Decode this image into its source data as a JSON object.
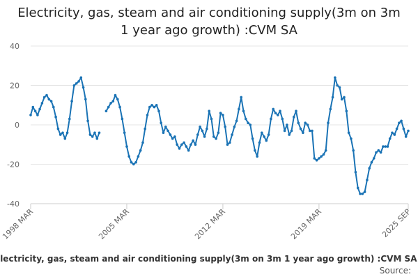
{
  "chart_data": {
    "type": "line",
    "title": "Electricity, gas, steam and air conditioning supply(3m on 3m\n1 year ago growth) :CVM SA",
    "source_label": "Source:",
    "series": [
      {
        "name": "Electricity, gas, steam and air conditioning supply(3m on 3m 1 year ago growth) :CVM SA",
        "color": "#1a73b5",
        "segments": [
          [
            [
              "1998-03",
              5
            ],
            [
              "1998-05",
              9
            ],
            [
              "1998-07",
              7
            ],
            [
              "1998-09",
              5
            ],
            [
              "1998-11",
              8
            ],
            [
              "1999-01",
              11
            ],
            [
              "1999-03",
              14
            ],
            [
              "1999-05",
              15
            ],
            [
              "1999-07",
              13
            ],
            [
              "1999-09",
              12
            ],
            [
              "1999-11",
              9
            ],
            [
              "2000-01",
              4
            ],
            [
              "2000-03",
              -2
            ],
            [
              "2000-05",
              -5
            ],
            [
              "2000-07",
              -4
            ],
            [
              "2000-09",
              -7
            ],
            [
              "2000-11",
              -4
            ],
            [
              "2001-01",
              3
            ],
            [
              "2001-03",
              12
            ],
            [
              "2001-05",
              20
            ],
            [
              "2001-07",
              21
            ],
            [
              "2001-09",
              22
            ],
            [
              "2001-11",
              24
            ],
            [
              "2002-01",
              19
            ],
            [
              "2002-03",
              13
            ],
            [
              "2002-05",
              2
            ],
            [
              "2002-07",
              -5
            ],
            [
              "2002-09",
              -6
            ],
            [
              "2002-11",
              -4
            ],
            [
              "2003-01",
              -7
            ],
            [
              "2003-03",
              -4
            ]
          ],
          [
            [
              "2003-09",
              7
            ],
            [
              "2003-11",
              9
            ],
            [
              "2004-01",
              11
            ],
            [
              "2004-03",
              12
            ],
            [
              "2004-05",
              15
            ],
            [
              "2004-07",
              13
            ],
            [
              "2004-09",
              9
            ],
            [
              "2004-11",
              3
            ],
            [
              "2005-01",
              -4
            ],
            [
              "2005-03",
              -11
            ],
            [
              "2005-05",
              -16
            ],
            [
              "2005-07",
              -19
            ],
            [
              "2005-09",
              -20
            ],
            [
              "2005-11",
              -19
            ],
            [
              "2006-01",
              -16
            ],
            [
              "2006-03",
              -13
            ],
            [
              "2006-05",
              -9
            ],
            [
              "2006-07",
              -2
            ],
            [
              "2006-09",
              5
            ],
            [
              "2006-11",
              9
            ],
            [
              "2007-01",
              10
            ],
            [
              "2007-03",
              9
            ],
            [
              "2007-05",
              10
            ],
            [
              "2007-07",
              7
            ],
            [
              "2007-09",
              1
            ],
            [
              "2007-11",
              -4
            ],
            [
              "2008-01",
              -1
            ],
            [
              "2008-03",
              -3
            ],
            [
              "2008-05",
              -5
            ],
            [
              "2008-07",
              -7
            ],
            [
              "2008-09",
              -6
            ],
            [
              "2008-11",
              -10
            ],
            [
              "2009-01",
              -12
            ],
            [
              "2009-03",
              -10
            ],
            [
              "2009-05",
              -9
            ],
            [
              "2009-07",
              -11
            ],
            [
              "2009-09",
              -13
            ],
            [
              "2009-11",
              -10
            ],
            [
              "2010-01",
              -8
            ],
            [
              "2010-03",
              -10
            ],
            [
              "2010-05",
              -5
            ],
            [
              "2010-07",
              -1
            ],
            [
              "2010-09",
              -3
            ],
            [
              "2010-11",
              -6
            ],
            [
              "2011-01",
              -2
            ],
            [
              "2011-03",
              7
            ],
            [
              "2011-05",
              3
            ],
            [
              "2011-07",
              -6
            ],
            [
              "2011-09",
              -7
            ],
            [
              "2011-11",
              -4
            ],
            [
              "2012-01",
              6
            ],
            [
              "2012-03",
              5
            ],
            [
              "2012-05",
              -1
            ],
            [
              "2012-07",
              -10
            ],
            [
              "2012-09",
              -9
            ],
            [
              "2012-11",
              -5
            ],
            [
              "2013-01",
              -1
            ],
            [
              "2013-03",
              2
            ],
            [
              "2013-05",
              8
            ],
            [
              "2013-07",
              14
            ],
            [
              "2013-09",
              7
            ],
            [
              "2013-11",
              3
            ],
            [
              "2014-01",
              1
            ],
            [
              "2014-03",
              0
            ],
            [
              "2014-05",
              -7
            ],
            [
              "2014-07",
              -13
            ],
            [
              "2014-09",
              -16
            ],
            [
              "2014-11",
              -9
            ],
            [
              "2015-01",
              -4
            ],
            [
              "2015-03",
              -6
            ],
            [
              "2015-05",
              -8
            ],
            [
              "2015-07",
              -5
            ],
            [
              "2015-09",
              3
            ],
            [
              "2015-11",
              8
            ],
            [
              "2016-01",
              6
            ],
            [
              "2016-03",
              5
            ],
            [
              "2016-05",
              7
            ],
            [
              "2016-07",
              3
            ],
            [
              "2016-09",
              -3
            ],
            [
              "2016-11",
              0
            ],
            [
              "2017-01",
              -5
            ],
            [
              "2017-03",
              -3
            ],
            [
              "2017-05",
              4
            ],
            [
              "2017-07",
              7
            ],
            [
              "2017-09",
              1
            ],
            [
              "2017-11",
              -2
            ],
            [
              "2018-01",
              -4
            ],
            [
              "2018-03",
              1
            ],
            [
              "2018-05",
              0
            ],
            [
              "2018-07",
              -3
            ],
            [
              "2018-09",
              -3
            ],
            [
              "2018-11",
              -17
            ],
            [
              "2019-01",
              -18
            ],
            [
              "2019-03",
              -17
            ],
            [
              "2019-05",
              -16
            ],
            [
              "2019-07",
              -15
            ],
            [
              "2019-09",
              -13
            ],
            [
              "2019-11",
              1
            ],
            [
              "2020-01",
              8
            ],
            [
              "2020-03",
              14
            ],
            [
              "2020-05",
              24
            ],
            [
              "2020-07",
              20
            ],
            [
              "2020-09",
              19
            ],
            [
              "2020-11",
              13
            ],
            [
              "2021-01",
              14
            ],
            [
              "2021-03",
              7
            ],
            [
              "2021-05",
              -4
            ],
            [
              "2021-07",
              -7
            ],
            [
              "2021-09",
              -13
            ],
            [
              "2021-11",
              -24
            ],
            [
              "2022-01",
              -32
            ],
            [
              "2022-03",
              -35
            ],
            [
              "2022-05",
              -35
            ],
            [
              "2022-07",
              -34
            ],
            [
              "2022-09",
              -28
            ],
            [
              "2022-11",
              -22
            ],
            [
              "2023-01",
              -19
            ],
            [
              "2023-03",
              -17
            ],
            [
              "2023-05",
              -14
            ],
            [
              "2023-07",
              -13
            ],
            [
              "2023-09",
              -14
            ],
            [
              "2023-11",
              -11
            ],
            [
              "2024-01",
              -11
            ],
            [
              "2024-03",
              -11
            ],
            [
              "2024-05",
              -7
            ],
            [
              "2024-07",
              -4
            ],
            [
              "2024-09",
              -5
            ],
            [
              "2024-11",
              -2
            ],
            [
              "2025-01",
              1
            ],
            [
              "2025-03",
              2
            ],
            [
              "2025-05",
              -2
            ],
            [
              "2025-07",
              -6
            ],
            [
              "2025-09",
              -3
            ]
          ]
        ]
      }
    ],
    "x_axis": {
      "type": "date",
      "range": [
        "1998-03",
        "2025-09"
      ],
      "ticks": [
        {
          "value": "1998-03",
          "label": "1998 MAR"
        },
        {
          "value": "2005-03",
          "label": "2005 MAR"
        },
        {
          "value": "2012-03",
          "label": "2012 MAR"
        },
        {
          "value": "2019-03",
          "label": "2019 MAR"
        },
        {
          "value": "2025-09",
          "label": "2025 SEP"
        }
      ]
    },
    "y_axis": {
      "range": [
        -40,
        40
      ],
      "ticks": [
        40,
        20,
        0,
        -20,
        -40
      ]
    },
    "grid": true,
    "legend_position": "bottom"
  }
}
